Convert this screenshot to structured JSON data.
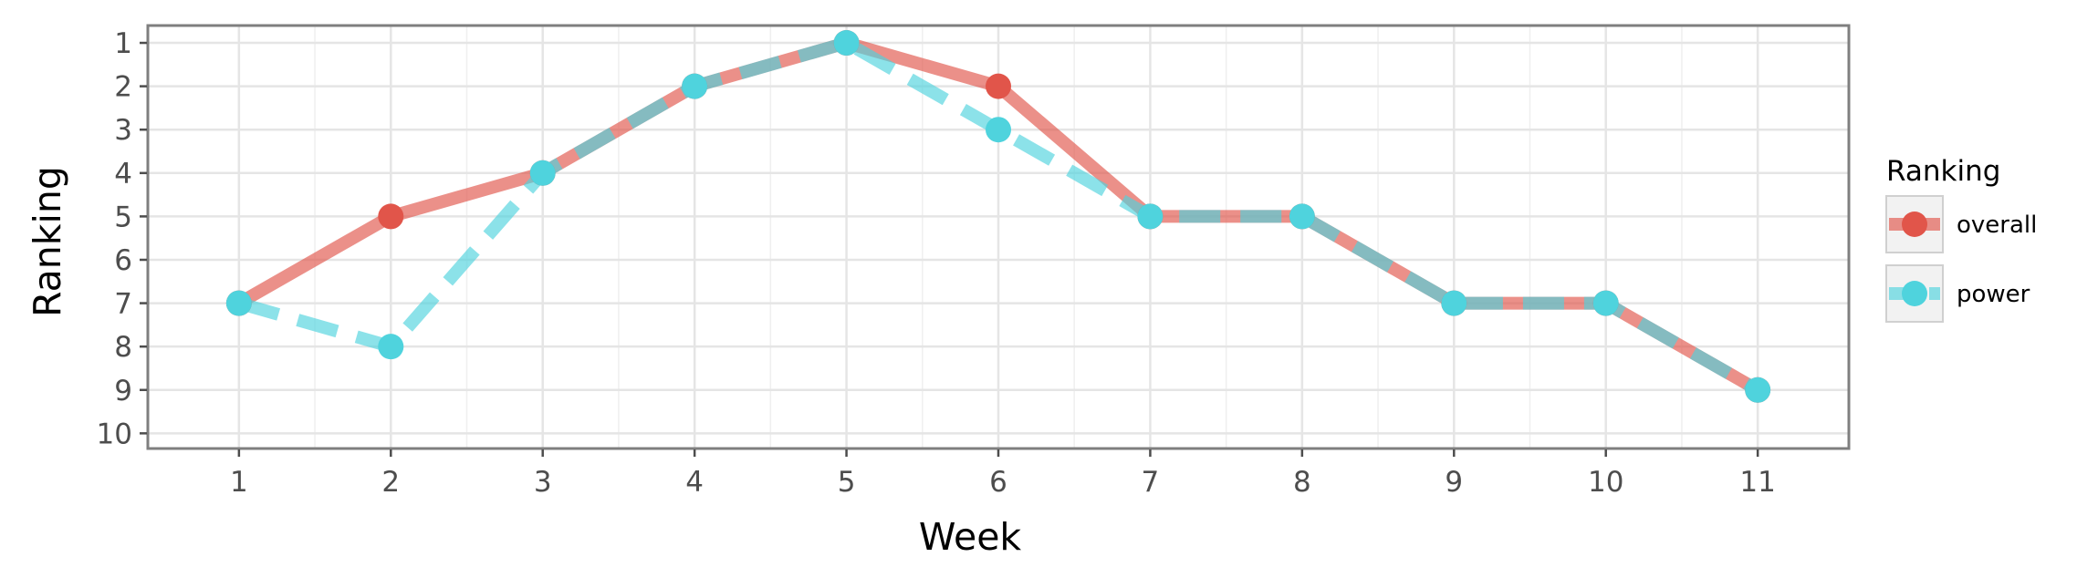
{
  "chart_data": {
    "type": "line",
    "title": "",
    "xlabel": "Week",
    "ylabel": "Ranking",
    "x": [
      1,
      2,
      3,
      4,
      5,
      6,
      7,
      8,
      9,
      10,
      11
    ],
    "xlim": [
      0.4,
      11.6
    ],
    "ylim": [
      10.35,
      0.6
    ],
    "y_reversed": true,
    "x_ticks": [
      1,
      2,
      3,
      4,
      5,
      6,
      7,
      8,
      9,
      10,
      11
    ],
    "y_ticks": [
      1,
      2,
      3,
      4,
      5,
      6,
      7,
      8,
      9,
      10
    ],
    "grid": true,
    "legend": {
      "title": "Ranking",
      "position": "right"
    },
    "series": [
      {
        "name": "overall",
        "values": [
          7,
          5,
          4,
          2,
          1,
          2,
          5,
          5,
          7,
          7,
          9
        ],
        "color": "#e1554a",
        "line_style": "solid"
      },
      {
        "name": "power",
        "values": [
          7,
          8,
          4,
          2,
          1,
          3,
          5,
          5,
          7,
          7,
          9
        ],
        "color": "#4fd3dd",
        "line_style": "dashed"
      }
    ]
  }
}
